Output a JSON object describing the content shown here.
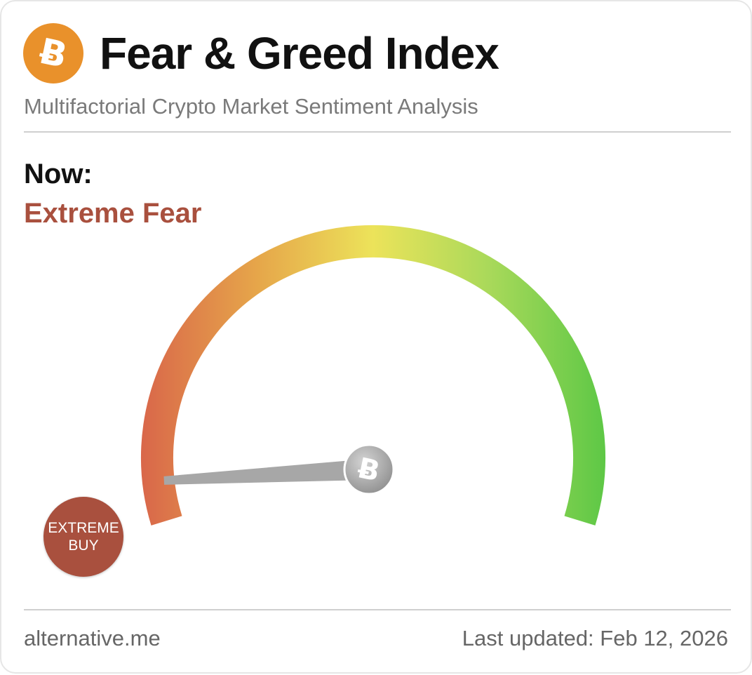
{
  "header": {
    "title": "Fear & Greed Index",
    "subtitle": "Multifactorial Crypto Market Sentiment Analysis",
    "logo_icon": "bitcoin-icon",
    "logo_glyph": "Ƀ",
    "logo_color": "#e9912b"
  },
  "now": {
    "label": "Now:",
    "value": "Extreme Fear",
    "value_color": "#a9503e"
  },
  "gauge": {
    "min": 0,
    "max": 100,
    "value_fraction": 0.05,
    "hub_icon": "bitcoin-icon",
    "hub_glyph": "Ƀ",
    "colors": {
      "extreme_fear": "#d9674a",
      "fear": "#e6a64a",
      "neutral": "#ece35a",
      "greed": "#a9d95a",
      "extreme_greed": "#5ec846"
    },
    "needle_color": "#a7a7a7"
  },
  "zone_badge": {
    "line1": "EXTREME",
    "line2": "BUY",
    "color": "#a9503e"
  },
  "footer": {
    "source": "alternative.me",
    "updated": "Last updated: Feb 12, 2026"
  }
}
